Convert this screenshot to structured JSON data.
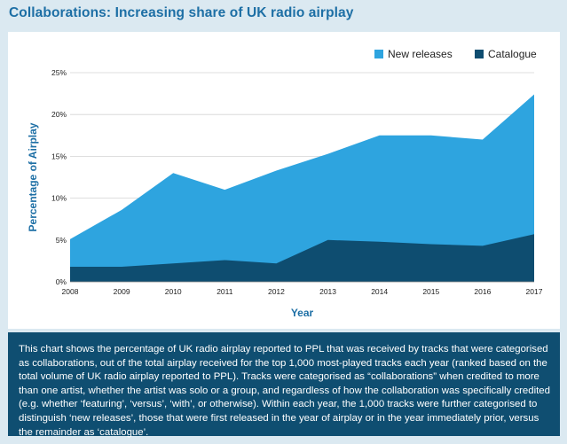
{
  "title": "Collaborations: Increasing share of UK radio airplay",
  "caption": "This chart shows the percentage of UK radio airplay reported to PPL that was received by tracks that were categorised as collaborations, out of the total airplay received for the top 1,000 most-played tracks each year (ranked based on the total volume of UK radio airplay reported to PPL). Tracks were categorised as “collaborations” when credited to more than one artist, whether the artist was solo or a group, and regardless of how the collaboration was specifically credited (e.g. whether ‘featuring’, ‘versus’, ‘with’, or otherwise). Within each year, the 1,000 tracks were further categorised to distinguish ‘new releases’, those that were first released in the year of airplay or in the year immediately prior, versus the remainder as ‘catalogue’.",
  "chart_data": {
    "type": "area",
    "stacked": true,
    "xlabel": "Year",
    "ylabel": "Percentage of Airplay",
    "x": [
      "2008",
      "2009",
      "2010",
      "2011",
      "2012",
      "2013",
      "2014",
      "2015",
      "2016",
      "2017"
    ],
    "ylim": [
      0,
      25
    ],
    "yticks": [
      "0%",
      "5%",
      "10%",
      "15%",
      "20%",
      "25%"
    ],
    "grid": "horizontal",
    "legend_position": "top-right",
    "series": [
      {
        "name": "New releases",
        "color": "#2ea4df",
        "values": [
          3.3,
          6.8,
          10.8,
          8.4,
          11.1,
          10.3,
          12.7,
          13.0,
          12.7,
          16.7
        ]
      },
      {
        "name": "Catalogue",
        "color": "#0e4d70",
        "values": [
          1.8,
          1.8,
          2.2,
          2.6,
          2.2,
          5.0,
          4.8,
          4.5,
          4.3,
          5.7
        ]
      }
    ]
  }
}
